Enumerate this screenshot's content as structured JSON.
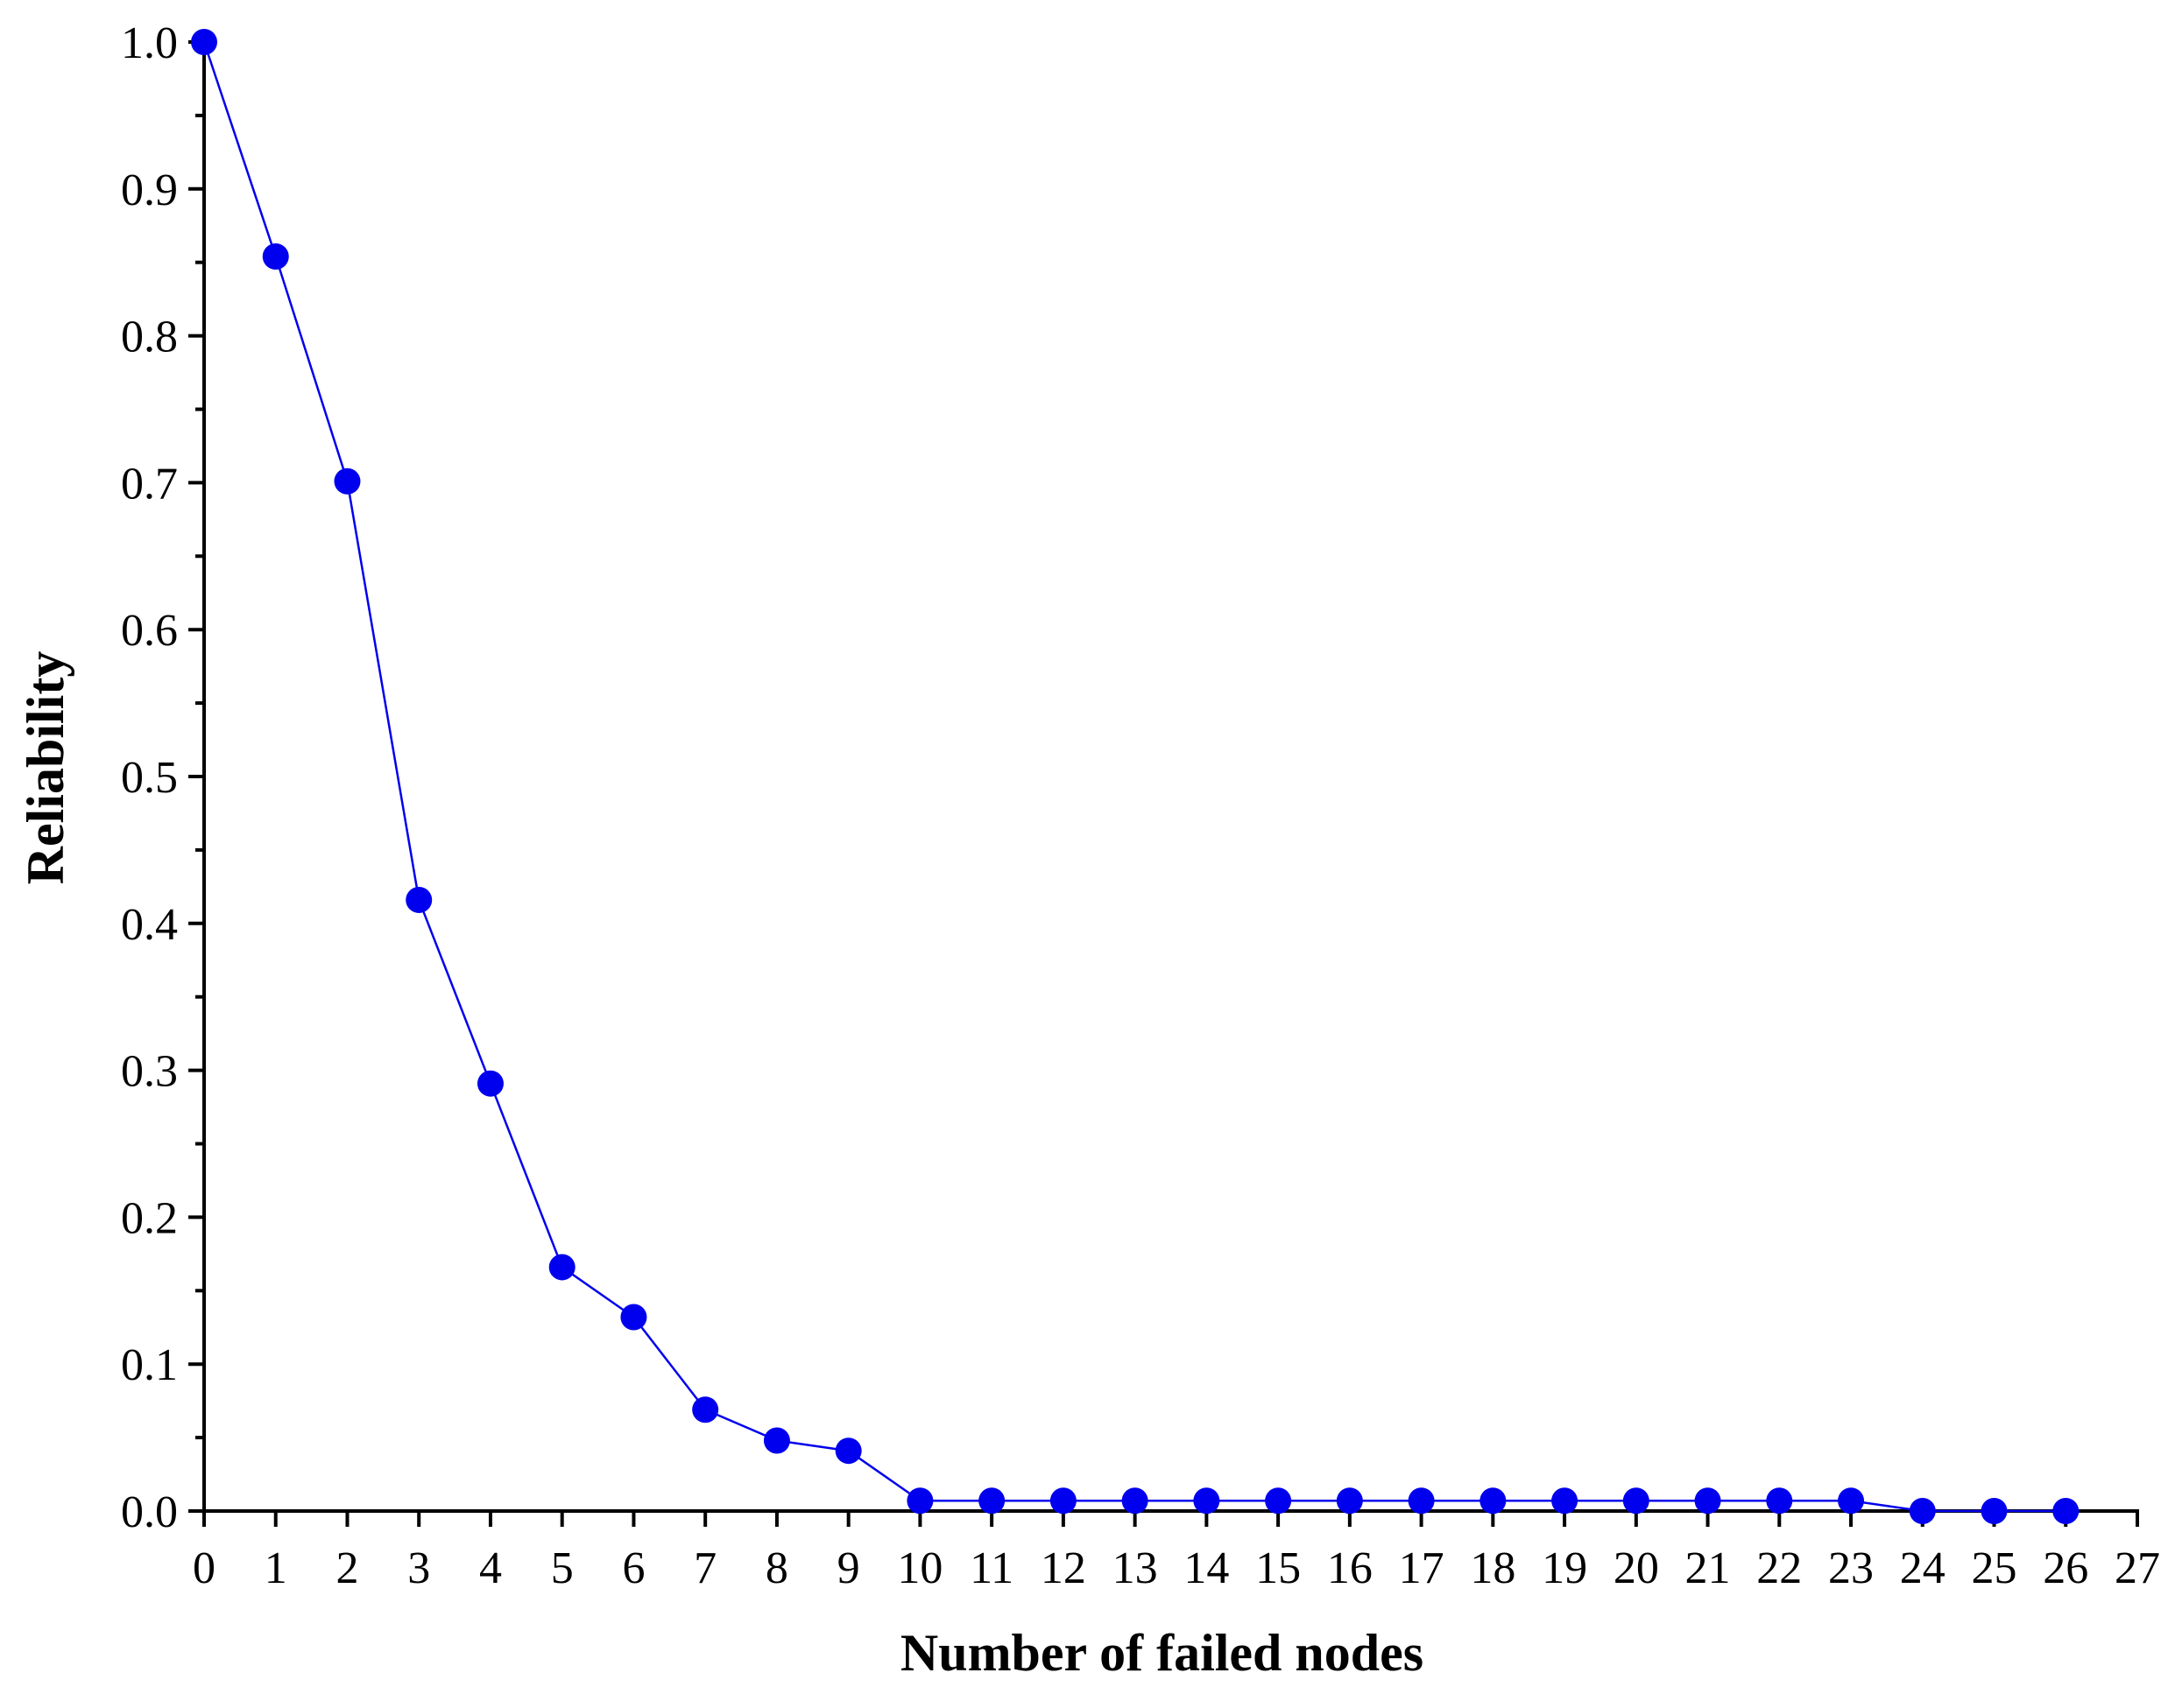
{
  "chart_data": {
    "type": "line",
    "title": "",
    "xlabel": "Number of failed nodes",
    "ylabel": "Reliability",
    "xlim": [
      0,
      27
    ],
    "ylim": [
      0.0,
      1.0
    ],
    "x_ticks": [
      "0",
      "1",
      "2",
      "3",
      "4",
      "5",
      "6",
      "7",
      "8",
      "9",
      "10",
      "11",
      "12",
      "13",
      "14",
      "15",
      "16",
      "17",
      "18",
      "19",
      "20",
      "21",
      "22",
      "23",
      "24",
      "25",
      "26",
      "27"
    ],
    "y_ticks": [
      "0.0",
      "0.1",
      "0.2",
      "0.3",
      "0.4",
      "0.5",
      "0.6",
      "0.7",
      "0.8",
      "0.9",
      "1.0"
    ],
    "grid": false,
    "legend": "none",
    "marker": "circle",
    "color": "#0000ee",
    "series": [
      {
        "x": [
          0,
          1,
          2,
          3,
          4,
          5,
          6,
          7,
          8,
          9,
          10,
          11,
          12,
          13,
          14,
          15,
          16,
          17,
          18,
          19,
          20,
          21,
          22,
          23,
          24,
          25,
          26
        ],
        "values": [
          1.0,
          0.854,
          0.701,
          0.416,
          0.291,
          0.166,
          0.132,
          0.069,
          0.048,
          0.041,
          0.007,
          0.007,
          0.007,
          0.007,
          0.007,
          0.007,
          0.007,
          0.007,
          0.007,
          0.007,
          0.007,
          0.007,
          0.007,
          0.007,
          0.0,
          0.0,
          0.0
        ]
      }
    ]
  }
}
